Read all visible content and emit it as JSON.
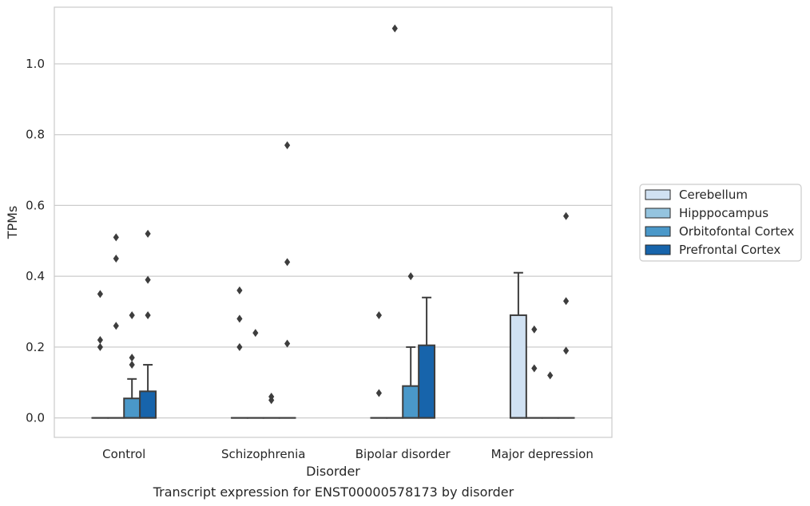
{
  "caption": "Transcript expression for ENST00000578173 by disorder",
  "chart_data": {
    "type": "box",
    "title": "",
    "xlabel": "Disorder",
    "ylabel": "TPMs",
    "ylim": [
      -0.055,
      1.16
    ],
    "yticks": [
      "0.0",
      "0.2",
      "0.4",
      "0.6",
      "0.8",
      "1.0"
    ],
    "grid": "horizontal",
    "legend_position": "right",
    "categories": [
      "Control",
      "Schizophrenia",
      "Bipolar disorder",
      "Major depression"
    ],
    "series": [
      {
        "name": "Cerebellum",
        "color": "#d0e1f2",
        "boxes": [
          {
            "q1": 0,
            "median": 0,
            "q3": 0,
            "whisker_low": 0,
            "whisker_high": 0,
            "outliers": [
              0.35,
              0.22,
              0.2
            ]
          },
          {
            "q1": 0,
            "median": 0,
            "q3": 0,
            "whisker_low": 0,
            "whisker_high": 0,
            "outliers": [
              0.36,
              0.28,
              0.2
            ]
          },
          {
            "q1": 0,
            "median": 0,
            "q3": 0,
            "whisker_low": 0,
            "whisker_high": 0,
            "outliers": [
              0.29,
              0.07
            ]
          },
          {
            "q1": 0,
            "median": 0,
            "q3": 0.29,
            "whisker_low": 0,
            "whisker_high": 0.41,
            "outliers": []
          }
        ]
      },
      {
        "name": "Hipppocampus",
        "color": "#94c4df",
        "boxes": [
          {
            "q1": 0,
            "median": 0,
            "q3": 0,
            "whisker_low": 0,
            "whisker_high": 0,
            "outliers": [
              0.51,
              0.45,
              0.26
            ]
          },
          {
            "q1": 0,
            "median": 0,
            "q3": 0,
            "whisker_low": 0,
            "whisker_high": 0,
            "outliers": [
              0.24
            ]
          },
          {
            "q1": 0,
            "median": 0,
            "q3": 0,
            "whisker_low": 0,
            "whisker_high": 0,
            "outliers": [
              1.1
            ]
          },
          {
            "q1": 0,
            "median": 0,
            "q3": 0,
            "whisker_low": 0,
            "whisker_high": 0,
            "outliers": [
              0.25,
              0.14
            ]
          }
        ]
      },
      {
        "name": "Orbitofontal Cortex",
        "color": "#4a98c9",
        "boxes": [
          {
            "q1": 0,
            "median": 0,
            "q3": 0.055,
            "whisker_low": 0,
            "whisker_high": 0.11,
            "outliers": [
              0.29,
              0.17,
              0.15
            ]
          },
          {
            "q1": 0,
            "median": 0,
            "q3": 0,
            "whisker_low": 0,
            "whisker_high": 0,
            "outliers": [
              0.06,
              0.05
            ]
          },
          {
            "q1": 0,
            "median": 0,
            "q3": 0.09,
            "whisker_low": 0,
            "whisker_high": 0.2,
            "outliers": [
              0.4
            ]
          },
          {
            "q1": 0,
            "median": 0,
            "q3": 0,
            "whisker_low": 0,
            "whisker_high": 0,
            "outliers": [
              0.12
            ]
          }
        ]
      },
      {
        "name": "Prefrontal Cortex",
        "color": "#1764ab",
        "boxes": [
          {
            "q1": 0,
            "median": 0,
            "q3": 0.075,
            "whisker_low": 0,
            "whisker_high": 0.15,
            "outliers": [
              0.52,
              0.39,
              0.29
            ]
          },
          {
            "q1": 0,
            "median": 0,
            "q3": 0,
            "whisker_low": 0,
            "whisker_high": 0,
            "outliers": [
              0.77,
              0.44,
              0.21
            ]
          },
          {
            "q1": 0,
            "median": 0,
            "q3": 0.205,
            "whisker_low": 0,
            "whisker_high": 0.34,
            "outliers": []
          },
          {
            "q1": 0,
            "median": 0,
            "q3": 0,
            "whisker_low": 0,
            "whisker_high": 0,
            "outliers": [
              0.57,
              0.33,
              0.19
            ]
          }
        ]
      }
    ]
  }
}
